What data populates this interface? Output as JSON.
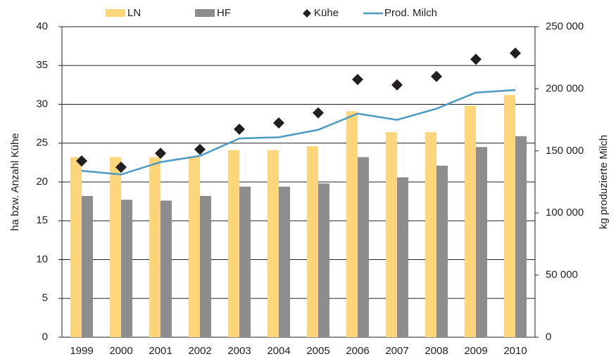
{
  "chart_data": {
    "type": "bar",
    "y_label": "ha bzw. Anzahl Kühe",
    "y2_label": "kg produzierte Milch",
    "categories": [
      "1999",
      "2000",
      "2001",
      "2002",
      "2003",
      "2004",
      "2005",
      "2006",
      "2007",
      "2008",
      "2009",
      "2010"
    ],
    "series": [
      {
        "name": "LN",
        "type": "bar",
        "color": "#fdd57a",
        "values": [
          23.2,
          23.2,
          23.2,
          23.2,
          24.1,
          24.1,
          24.6,
          29.1,
          26.4,
          26.4,
          29.8,
          31.2
        ]
      },
      {
        "name": "HF",
        "type": "bar",
        "color": "#8d8d8f",
        "values": [
          18.2,
          17.7,
          17.6,
          18.2,
          19.4,
          19.4,
          19.8,
          23.2,
          20.6,
          22.1,
          24.5,
          25.9
        ]
      },
      {
        "name": "Kühe",
        "type": "scatter",
        "color": "#231f20",
        "values": [
          22.7,
          21.9,
          23.7,
          24.2,
          26.8,
          27.6,
          28.9,
          33.2,
          32.5,
          33.6,
          35.8,
          36.6
        ]
      },
      {
        "name": "Prod. Milch",
        "type": "line",
        "axis": "y2",
        "color": "#4a9ac4",
        "values": [
          134000,
          131000,
          141000,
          146000,
          160000,
          161000,
          167000,
          180000,
          175000,
          184000,
          197000,
          199000
        ]
      }
    ],
    "ylim": [
      0,
      40
    ],
    "yticks": [
      0,
      5,
      10,
      15,
      20,
      25,
      30,
      35,
      40
    ],
    "y2lim": [
      0,
      250000
    ],
    "y2ticks": [
      0,
      {
        "value": 50000,
        "label": "50 000"
      },
      {
        "value": 100000,
        "label": "100 000"
      },
      {
        "value": 150000,
        "label": "150 000"
      },
      {
        "value": 200000,
        "label": "200 000"
      },
      {
        "value": 250000,
        "label": "250 000"
      }
    ],
    "grid": true,
    "legend": "top"
  }
}
